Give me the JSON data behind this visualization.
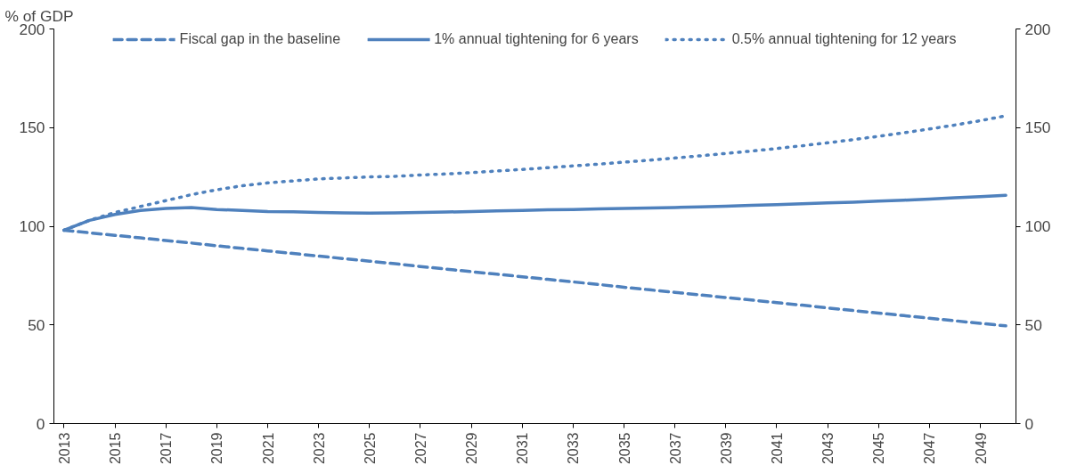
{
  "chart_data": {
    "type": "line",
    "ylabel": "% of GDP",
    "categories": [
      "2013",
      null,
      "2015",
      null,
      "2017",
      null,
      "2019",
      null,
      "2021",
      null,
      "2023",
      null,
      "2025",
      null,
      "2027",
      null,
      "2029",
      null,
      "2031",
      null,
      "2033",
      null,
      "2035",
      null,
      "2037",
      null,
      "2039",
      null,
      "2041",
      null,
      "2043",
      null,
      "2045",
      null,
      "2047",
      null,
      "2049",
      null
    ],
    "series": [
      {
        "name": "Fiscal gap in the baseline",
        "color": "#4f81bd",
        "line_style": "dashed",
        "values": [
          98,
          96.7,
          95.4,
          94.1,
          92.8,
          91.5,
          90.1,
          88.8,
          87.5,
          86.2,
          84.9,
          83.6,
          82.3,
          81.0,
          79.6,
          78.3,
          77.0,
          75.7,
          74.4,
          73.1,
          71.8,
          70.5,
          69.1,
          67.8,
          66.5,
          65.2,
          63.9,
          62.6,
          61.3,
          60.0,
          58.6,
          57.3,
          56.0,
          54.7,
          53.4,
          52.1,
          50.8,
          49.5
        ]
      },
      {
        "name": "1% annual tightening for 6 years",
        "color": "#4f81bd",
        "line_style": "solid",
        "values": [
          98,
          103,
          106,
          108,
          109,
          109.5,
          108.5,
          108,
          107.5,
          107.3,
          107,
          106.8,
          106.7,
          106.8,
          107,
          107.2,
          107.5,
          107.8,
          108,
          108.3,
          108.5,
          108.8,
          109,
          109.3,
          109.5,
          109.8,
          110.2,
          110.6,
          111,
          111.4,
          111.8,
          112.2,
          112.7,
          113.2,
          113.8,
          114.4,
          115,
          115.7
        ]
      },
      {
        "name": "0.5% annual tightening for 12 years",
        "color": "#4f81bd",
        "line_style": "dotted",
        "values": [
          98,
          103,
          107,
          110,
          113,
          116,
          118.5,
          120.5,
          122,
          123,
          124,
          124.5,
          125,
          125.3,
          126,
          126.5,
          127.2,
          128,
          128.8,
          129.7,
          130.6,
          131.5,
          132.5,
          133.5,
          134.6,
          135.7,
          136.9,
          138.1,
          139.4,
          140.8,
          142.3,
          143.9,
          145.6,
          147.4,
          149.3,
          151.3,
          153.5,
          156
        ]
      }
    ],
    "ylim": [
      0,
      200
    ],
    "yticks": [
      0,
      50,
      100,
      150,
      200
    ],
    "y2lim": [
      0,
      200
    ],
    "y2ticks": [
      0,
      50,
      100,
      150,
      200
    ],
    "grid": false,
    "legend": "top"
  }
}
